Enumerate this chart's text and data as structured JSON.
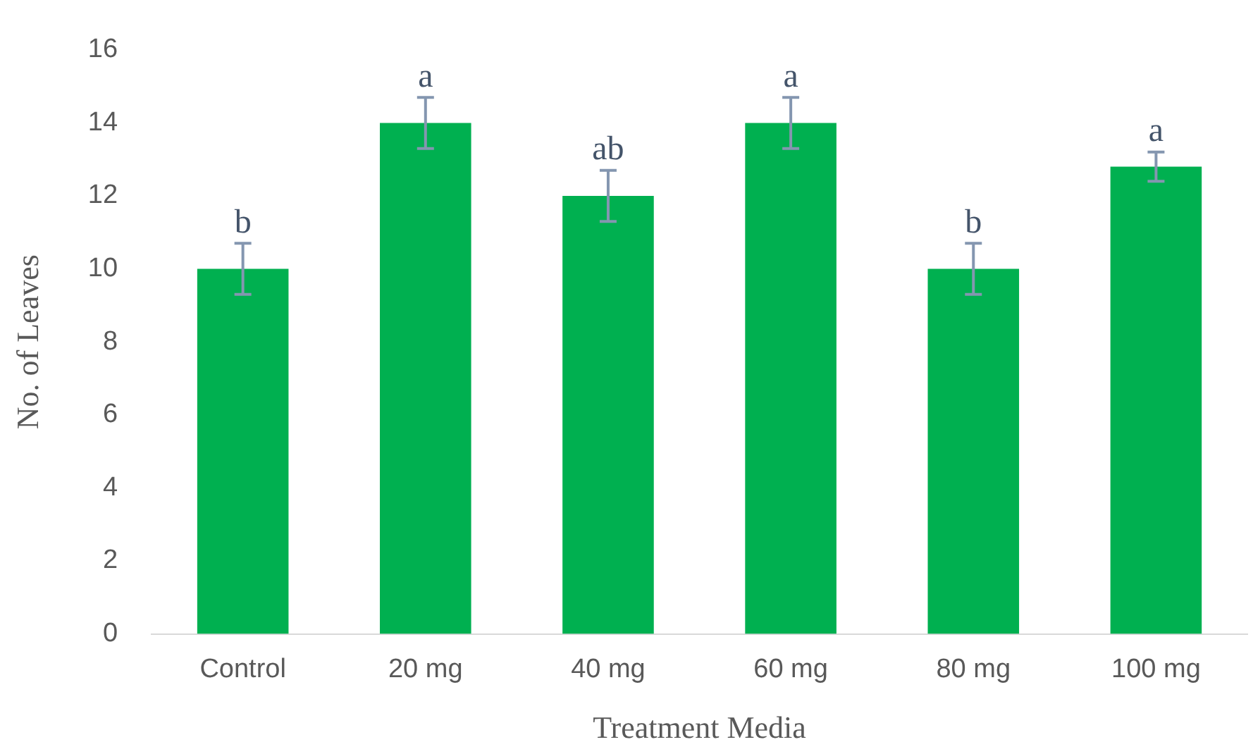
{
  "chart_data": {
    "type": "bar",
    "xlabel": "Treatment Media",
    "ylabel": "No. of Leaves",
    "categories": [
      "Control",
      "20 mg",
      "40 mg",
      "60 mg",
      "80 mg",
      "100 mg"
    ],
    "values": [
      10,
      14,
      12,
      14,
      10,
      12.8
    ],
    "errors": [
      0.7,
      0.7,
      0.7,
      0.7,
      0.7,
      0.4
    ],
    "color": "#00b050",
    "ylim": [
      0,
      16
    ],
    "yticks": [
      0,
      2,
      4,
      6,
      8,
      10,
      12,
      14,
      16
    ],
    "grid": false,
    "legend": false,
    "annotations": [
      {
        "text": "b",
        "x": "Control",
        "y": 10.7
      },
      {
        "text": "a",
        "x": "20 mg",
        "y": 14.7
      },
      {
        "text": "ab",
        "x": "40 mg",
        "y": 12.7
      },
      {
        "text": "a",
        "x": "60 mg",
        "y": 14.7
      },
      {
        "text": "b",
        "x": "80 mg",
        "y": 10.7
      },
      {
        "text": "a",
        "x": "100 mg",
        "y": 13.2
      }
    ]
  }
}
